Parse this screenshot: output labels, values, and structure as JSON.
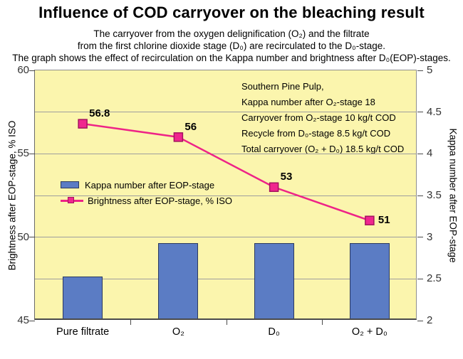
{
  "header": {
    "title": "Influence of COD carryover on the bleaching result",
    "subtitle_lines": [
      "The carryover from the oxygen delignification (O₂) and the filtrate",
      "from the first chlorine dioxide stage (D₀) are recirculated to the D₀-stage.",
      "The graph shows the effect of recirculation on the Kappa number and brightness after D₀(EOP)-stages."
    ]
  },
  "chart_data": {
    "type": "bar",
    "subtype": "combo-bar-line-dual-axis",
    "categories": [
      "Pure filtrate",
      "O₂",
      "D₀",
      "O₂ + D₀"
    ],
    "series": [
      {
        "name": "Kappa number after EOP-stage",
        "type": "bar",
        "axis": "right",
        "values": [
          2.5,
          2.9,
          2.9,
          2.9
        ]
      },
      {
        "name": "Brightness after EOP-stage, % ISO",
        "type": "line",
        "axis": "left",
        "marker": "square",
        "values": [
          56.8,
          56,
          53,
          51
        ],
        "point_labels": [
          "56.8",
          "56",
          "53",
          "51"
        ],
        "point_label_pos": [
          "above-right",
          "above-right",
          "above-right",
          "right"
        ]
      }
    ],
    "left_axis": {
      "title": "Brightness after EOP-stage, % ISO",
      "min": 45,
      "max": 60,
      "tick_labels": [
        60,
        55,
        50,
        45
      ],
      "grid_step": 2.5
    },
    "right_axis": {
      "title": "Kappa number after EOP-stage",
      "min": 2,
      "max": 5,
      "tick_labels": [
        5,
        4.5,
        4,
        3.5,
        3,
        2.5,
        2
      ]
    },
    "grid": true,
    "legend_position": "inside-middle-left",
    "annotation_lines": [
      "Southern Pine Pulp,",
      "Kappa number after O₂-stage 18",
      "Carryover from O₂-stage 10 kg/t COD",
      "Recycle from D₀-stage 8.5 kg/t COD",
      "Total carryover (O₂ + D₀) 18.5 kg/t COD"
    ]
  },
  "colors": {
    "page_bg": "#ffffff",
    "plot_bg": "#fbf5ad",
    "bar_fill": "#5b7cc4",
    "bar_border": "#2c3a60",
    "line": "#ee2387",
    "marker_fill": "#f0268e",
    "marker_border": "#a3135f",
    "gridline": "#9e9e9e",
    "axis": "#4a4a4a"
  }
}
